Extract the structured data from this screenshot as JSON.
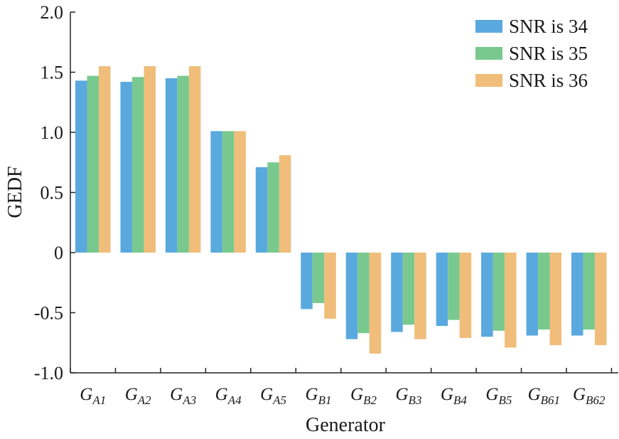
{
  "chart_data": {
    "type": "bar",
    "xlabel": "Generator",
    "ylabel": "GEDF",
    "ylim": [
      -1.0,
      2.0
    ],
    "yticks": [
      {
        "value": -1.0,
        "label": "-1.0"
      },
      {
        "value": -0.5,
        "label": "-0.5"
      },
      {
        "value": 0,
        "label": "0"
      },
      {
        "value": 0.5,
        "label": "0.5"
      },
      {
        "value": 1.0,
        "label": "1.0"
      },
      {
        "value": 1.5,
        "label": "1.5"
      },
      {
        "value": 2.0,
        "label": "2.0"
      }
    ],
    "categories": [
      {
        "main": "G",
        "sub": "A1"
      },
      {
        "main": "G",
        "sub": "A2"
      },
      {
        "main": "G",
        "sub": "A3"
      },
      {
        "main": "G",
        "sub": "A4"
      },
      {
        "main": "G",
        "sub": "A5"
      },
      {
        "main": "G",
        "sub": "B1"
      },
      {
        "main": "G",
        "sub": "B2"
      },
      {
        "main": "G",
        "sub": "B3"
      },
      {
        "main": "G",
        "sub": "B4"
      },
      {
        "main": "G",
        "sub": "B5"
      },
      {
        "main": "G",
        "sub": "B61"
      },
      {
        "main": "G",
        "sub": "B62"
      }
    ],
    "series": [
      {
        "name": "SNR is 34",
        "color": "#5aa9de",
        "values": [
          1.43,
          1.42,
          1.45,
          1.01,
          0.71,
          -0.47,
          -0.72,
          -0.66,
          -0.61,
          -0.7,
          -0.69,
          -0.69
        ]
      },
      {
        "name": "SNR is 35",
        "color": "#79c98f",
        "values": [
          1.47,
          1.46,
          1.47,
          1.01,
          0.75,
          -0.42,
          -0.67,
          -0.6,
          -0.56,
          -0.65,
          -0.64,
          -0.64
        ]
      },
      {
        "name": "SNR is 36",
        "color": "#f0bd7a",
        "values": [
          1.55,
          1.55,
          1.55,
          1.01,
          0.81,
          -0.55,
          -0.84,
          -0.72,
          -0.71,
          -0.79,
          -0.77,
          -0.77
        ]
      }
    ],
    "grid": false,
    "legend": "top-right"
  }
}
